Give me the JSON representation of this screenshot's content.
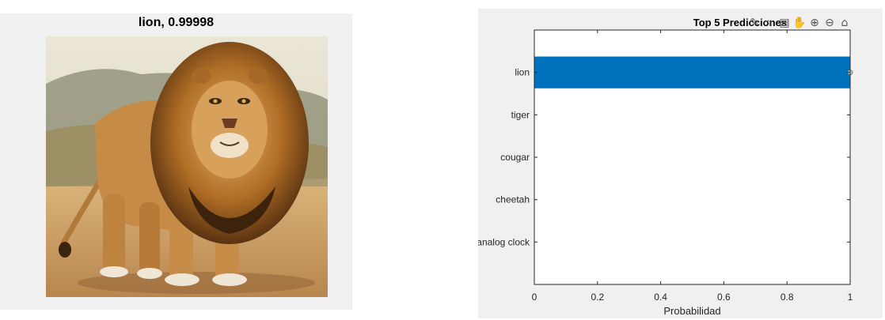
{
  "image_panel": {
    "title": "lion, 0.99998",
    "image_subject": "lion"
  },
  "toolbar": {
    "icons": [
      "brush-icon",
      "data-tips-icon",
      "restore-view-icon",
      "pan-hand-icon",
      "zoom-in-icon",
      "zoom-out-icon",
      "home-icon"
    ]
  },
  "chart_data": {
    "type": "bar",
    "orientation": "horizontal",
    "title": "Top 5 Predicciones",
    "xlabel": "Probabilidad",
    "ylabel": "",
    "categories": [
      "lion",
      "tiger",
      "cougar",
      "cheetah",
      "analog clock"
    ],
    "values": [
      0.99998,
      1e-05,
      5e-06,
      3e-06,
      1e-06
    ],
    "xlim": [
      0,
      1
    ],
    "xticks": [
      "0",
      "0.2",
      "0.4",
      "0.6",
      "0.8",
      "1"
    ],
    "bar_color": "#0072bd",
    "grid": false
  }
}
